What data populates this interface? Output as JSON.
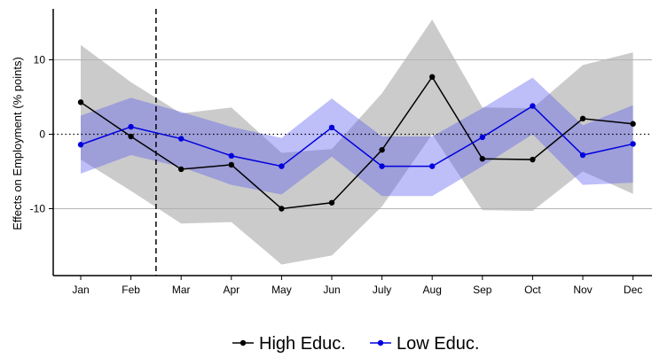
{
  "chart_data": {
    "type": "line",
    "title": "",
    "xlabel": "",
    "ylabel": "Effects on Employment  (% points)",
    "categories": [
      "Jan",
      "Feb",
      "Mar",
      "Apr",
      "May",
      "Jun",
      "July",
      "Aug",
      "Sep",
      "Oct",
      "Nov",
      "Dec"
    ],
    "ylim": [
      -19,
      17
    ],
    "yticks": [
      10,
      0,
      -10
    ],
    "ytick_labels": [
      "10",
      "0",
      "-10"
    ],
    "grid": "horizontal at y ticks",
    "zero_line": "dotted",
    "vertical_marker": {
      "between": [
        "Feb",
        "Mar"
      ],
      "style": "dashed"
    },
    "legend_position": "bottom",
    "series": [
      {
        "name": "High Educ.",
        "color": "#000000",
        "band_color": "#b3b3b3",
        "values": [
          4.3,
          -0.3,
          -4.7,
          -4.1,
          -10.0,
          -9.2,
          -2.1,
          7.7,
          -3.3,
          -3.4,
          2.1,
          1.4
        ],
        "upper": [
          12.0,
          7.0,
          2.8,
          3.6,
          -2.5,
          -2.0,
          5.5,
          15.4,
          3.6,
          3.5,
          9.3,
          11.0
        ],
        "lower": [
          -3.4,
          -7.6,
          -12.0,
          -11.8,
          -17.5,
          -16.3,
          -9.7,
          0.0,
          -10.2,
          -10.3,
          -5.0,
          -8.0
        ]
      },
      {
        "name": "Low Educ.",
        "color": "#0000dd",
        "band_color": "#5555ee",
        "values": [
          -1.4,
          1.0,
          -0.6,
          -2.9,
          -4.3,
          0.9,
          -4.3,
          -4.3,
          -0.4,
          3.8,
          -2.8,
          -1.3
        ],
        "upper": [
          2.5,
          4.9,
          3.0,
          1.0,
          -0.5,
          4.8,
          -0.3,
          -0.3,
          3.5,
          7.6,
          1.2,
          3.9
        ],
        "lower": [
          -5.3,
          -2.8,
          -4.4,
          -6.8,
          -8.1,
          -3.0,
          -8.3,
          -8.3,
          -4.3,
          0.0,
          -6.8,
          -6.5
        ]
      }
    ]
  }
}
